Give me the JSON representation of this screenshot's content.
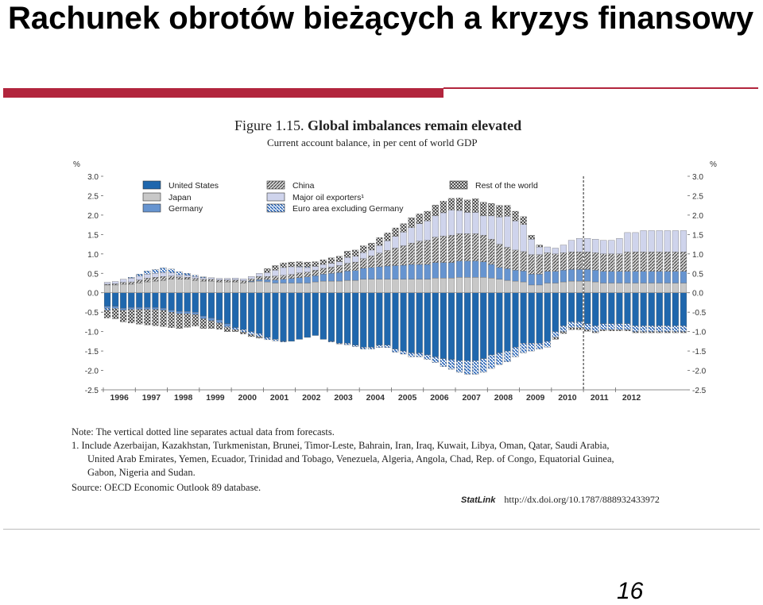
{
  "slide": {
    "title": "Rachunek obrotów bieżących a kryzys finansowy",
    "page_number": "16"
  },
  "figure": {
    "label": "Figure 1.15.",
    "title": "Global imbalances remain elevated",
    "subtitle": "Current account balance, in per cent of world GDP"
  },
  "notes": {
    "note": "Note: The vertical dotted line separates actual data from forecasts.",
    "footnote_1": "1. Include Azerbaijan, Kazakhstan, Turkmenistan, Brunei, Timor-Leste, Bahrain, Iran, Iraq, Kuwait, Libya, Oman, Qatar, Saudi Arabia,",
    "footnote_2": "United Arab Emirates, Yemen, Ecuador, Trinidad and Tobago, Venezuela, Algeria, Angola, Chad, Rep. of Congo, Equatorial Guinea,",
    "footnote_3": "Gabon, Nigeria and Sudan.",
    "source": "Source: OECD Economic Outlook 89 database.",
    "statlink_logo": "StatLink",
    "statlink_url": "http://dx.doi.org/10.1787/888932433972"
  },
  "colors": {
    "title_rule": "#b2253d",
    "united_states": "#1f67ad",
    "japan": "#c8c8c8",
    "germany": "#6694d0",
    "china": "#7a7a7a",
    "major_oil": "#cfd4ec",
    "euro_area": "#5b8fd0",
    "rest_world": "#9a9a9a"
  },
  "chart_data": {
    "type": "bar",
    "stacked": true,
    "ylabel_left": "%",
    "ylabel_right": "%",
    "ylim": [
      -2.5,
      3.0
    ],
    "yticks": [
      "3.0",
      "2.5",
      "2.0",
      "1.5",
      "1.0",
      "0.5",
      "0.0",
      "-0.5",
      "-1.0",
      "-1.5",
      "-2.0",
      "-2.5"
    ],
    "x_tick_labels": [
      "1996",
      "1997",
      "1998",
      "1999",
      "2000",
      "2001",
      "2002",
      "2003",
      "2004",
      "2005",
      "2006",
      "2007",
      "2008",
      "2009",
      "2010",
      "2011",
      "2012"
    ],
    "forecast_line_after": "2010 Q4",
    "grid": false,
    "legend": [
      {
        "key": "united_states",
        "name": "United States"
      },
      {
        "key": "japan",
        "name": "Japan"
      },
      {
        "key": "germany",
        "name": "Germany"
      },
      {
        "key": "china",
        "name": "China"
      },
      {
        "key": "major_oil",
        "name": "Major oil exporters¹"
      },
      {
        "key": "euro_area",
        "name": "Euro area excluding Germany"
      },
      {
        "key": "rest_world",
        "name": "Rest of the world"
      }
    ],
    "legend_placement": "top-left",
    "periods_per_year": 4,
    "series": [
      {
        "key": "united_states",
        "values": [
          -0.35,
          -0.35,
          -0.4,
          -0.38,
          -0.38,
          -0.38,
          -0.38,
          -0.4,
          -0.45,
          -0.48,
          -0.48,
          -0.5,
          -0.6,
          -0.65,
          -0.7,
          -0.8,
          -0.9,
          -0.95,
          -1.0,
          -1.05,
          -1.15,
          -1.2,
          -1.25,
          -1.25,
          -1.2,
          -1.15,
          -1.1,
          -1.2,
          -1.25,
          -1.3,
          -1.3,
          -1.35,
          -1.4,
          -1.4,
          -1.35,
          -1.35,
          -1.45,
          -1.5,
          -1.55,
          -1.55,
          -1.6,
          -1.65,
          -1.7,
          -1.72,
          -1.75,
          -1.75,
          -1.75,
          -1.7,
          -1.6,
          -1.55,
          -1.5,
          -1.4,
          -1.3,
          -1.3,
          -1.3,
          -1.25,
          -1.0,
          -0.85,
          -0.75,
          -0.75,
          -0.8,
          -0.85,
          -0.8,
          -0.8,
          -0.8,
          -0.8,
          -0.85,
          -0.85,
          -0.85,
          -0.85,
          -0.85,
          -0.85,
          -0.85
        ]
      },
      {
        "key": "japan",
        "values": [
          0.2,
          0.2,
          0.22,
          0.22,
          0.25,
          0.28,
          0.3,
          0.32,
          0.35,
          0.35,
          0.35,
          0.32,
          0.3,
          0.3,
          0.28,
          0.28,
          0.28,
          0.25,
          0.28,
          0.3,
          0.28,
          0.25,
          0.25,
          0.25,
          0.25,
          0.25,
          0.28,
          0.3,
          0.3,
          0.3,
          0.32,
          0.32,
          0.35,
          0.35,
          0.35,
          0.35,
          0.35,
          0.35,
          0.35,
          0.35,
          0.35,
          0.38,
          0.38,
          0.38,
          0.4,
          0.4,
          0.4,
          0.4,
          0.38,
          0.35,
          0.32,
          0.3,
          0.28,
          0.2,
          0.2,
          0.25,
          0.25,
          0.28,
          0.3,
          0.3,
          0.3,
          0.28,
          0.25,
          0.25,
          0.25,
          0.25,
          0.25,
          0.25,
          0.25,
          0.25,
          0.25,
          0.25,
          0.25
        ]
      },
      {
        "key": "germany",
        "values": [
          -0.05,
          -0.05,
          -0.05,
          -0.05,
          -0.05,
          -0.05,
          -0.05,
          -0.05,
          -0.05,
          -0.06,
          -0.06,
          -0.06,
          -0.07,
          -0.07,
          -0.07,
          -0.07,
          0.0,
          0.0,
          0.02,
          0.04,
          0.06,
          0.08,
          0.1,
          0.12,
          0.14,
          0.16,
          0.16,
          0.18,
          0.2,
          0.22,
          0.24,
          0.25,
          0.28,
          0.3,
          0.32,
          0.34,
          0.35,
          0.36,
          0.38,
          0.38,
          0.38,
          0.4,
          0.4,
          0.4,
          0.42,
          0.42,
          0.42,
          0.4,
          0.35,
          0.3,
          0.3,
          0.28,
          0.28,
          0.28,
          0.28,
          0.3,
          0.3,
          0.3,
          0.3,
          0.3,
          0.3,
          0.3,
          0.3,
          0.3,
          0.3,
          0.3,
          0.3,
          0.3,
          0.3,
          0.3,
          0.3,
          0.3,
          0.3
        ]
      },
      {
        "key": "china",
        "values": [
          0.02,
          0.03,
          0.05,
          0.06,
          0.08,
          0.1,
          0.1,
          0.1,
          0.08,
          0.06,
          0.05,
          0.05,
          0.05,
          0.05,
          0.05,
          0.05,
          0.05,
          0.06,
          0.06,
          0.08,
          0.08,
          0.1,
          0.1,
          0.1,
          0.12,
          0.12,
          0.14,
          0.15,
          0.16,
          0.18,
          0.2,
          0.22,
          0.25,
          0.3,
          0.35,
          0.4,
          0.45,
          0.5,
          0.55,
          0.6,
          0.62,
          0.65,
          0.68,
          0.7,
          0.7,
          0.7,
          0.7,
          0.68,
          0.65,
          0.6,
          0.55,
          0.52,
          0.5,
          0.5,
          0.5,
          0.48,
          0.45,
          0.45,
          0.45,
          0.45,
          0.45,
          0.45,
          0.45,
          0.45,
          0.45,
          0.5,
          0.5,
          0.5,
          0.5,
          0.5,
          0.5,
          0.5,
          0.5
        ]
      },
      {
        "key": "major_oil",
        "values": [
          0.05,
          0.06,
          0.08,
          0.1,
          0.1,
          0.1,
          0.1,
          0.1,
          0.08,
          0.05,
          0.05,
          0.05,
          0.04,
          0.04,
          0.04,
          0.04,
          0.05,
          0.05,
          0.06,
          0.08,
          0.1,
          0.15,
          0.2,
          0.2,
          0.15,
          0.12,
          0.1,
          0.1,
          0.1,
          0.1,
          0.15,
          0.15,
          0.15,
          0.15,
          0.2,
          0.25,
          0.3,
          0.35,
          0.4,
          0.45,
          0.5,
          0.55,
          0.6,
          0.65,
          0.6,
          0.55,
          0.55,
          0.5,
          0.6,
          0.7,
          0.8,
          0.75,
          0.7,
          0.4,
          0.2,
          0.15,
          0.15,
          0.2,
          0.3,
          0.35,
          0.35,
          0.35,
          0.35,
          0.35,
          0.4,
          0.5,
          0.5,
          0.55,
          0.55,
          0.55,
          0.55,
          0.55,
          0.55
        ]
      },
      {
        "key": "euro_area",
        "values": [
          -0.05,
          -0.02,
          0.0,
          0.02,
          0.05,
          0.08,
          0.1,
          0.12,
          0.1,
          0.08,
          0.05,
          0.03,
          0.02,
          0.0,
          -0.02,
          -0.03,
          -0.05,
          -0.06,
          -0.08,
          -0.08,
          -0.06,
          -0.04,
          -0.02,
          0.0,
          0.02,
          0.02,
          0.0,
          0.0,
          -0.02,
          -0.02,
          -0.04,
          -0.04,
          -0.05,
          -0.05,
          -0.06,
          -0.06,
          -0.08,
          -0.08,
          -0.1,
          -0.1,
          -0.12,
          -0.15,
          -0.2,
          -0.25,
          -0.3,
          -0.35,
          -0.35,
          -0.35,
          -0.35,
          -0.3,
          -0.28,
          -0.25,
          -0.25,
          -0.2,
          -0.15,
          -0.15,
          -0.15,
          -0.15,
          -0.15,
          -0.15,
          -0.15,
          -0.15,
          -0.15,
          -0.15,
          -0.15,
          -0.15,
          -0.15,
          -0.15,
          -0.15,
          -0.15,
          -0.15,
          -0.15,
          -0.15
        ]
      },
      {
        "key": "rest_world",
        "values": [
          -0.2,
          -0.25,
          -0.3,
          -0.35,
          -0.38,
          -0.4,
          -0.42,
          -0.42,
          -0.4,
          -0.38,
          -0.35,
          -0.3,
          -0.25,
          -0.2,
          -0.15,
          -0.1,
          -0.05,
          -0.05,
          -0.05,
          -0.04,
          0.1,
          0.12,
          0.12,
          0.12,
          0.12,
          0.12,
          0.12,
          0.12,
          0.14,
          0.14,
          0.16,
          0.16,
          0.18,
          0.18,
          0.2,
          0.2,
          0.22,
          0.22,
          0.25,
          0.25,
          0.25,
          0.28,
          0.3,
          0.3,
          0.32,
          0.32,
          0.35,
          0.35,
          0.32,
          0.3,
          0.28,
          0.25,
          0.2,
          0.1,
          0.05,
          0.0,
          -0.05,
          -0.05,
          -0.05,
          -0.05,
          -0.04,
          -0.03,
          -0.03,
          -0.03,
          -0.03,
          -0.03,
          -0.03,
          -0.03,
          -0.03,
          -0.03,
          -0.03,
          -0.03,
          -0.03
        ]
      }
    ]
  }
}
